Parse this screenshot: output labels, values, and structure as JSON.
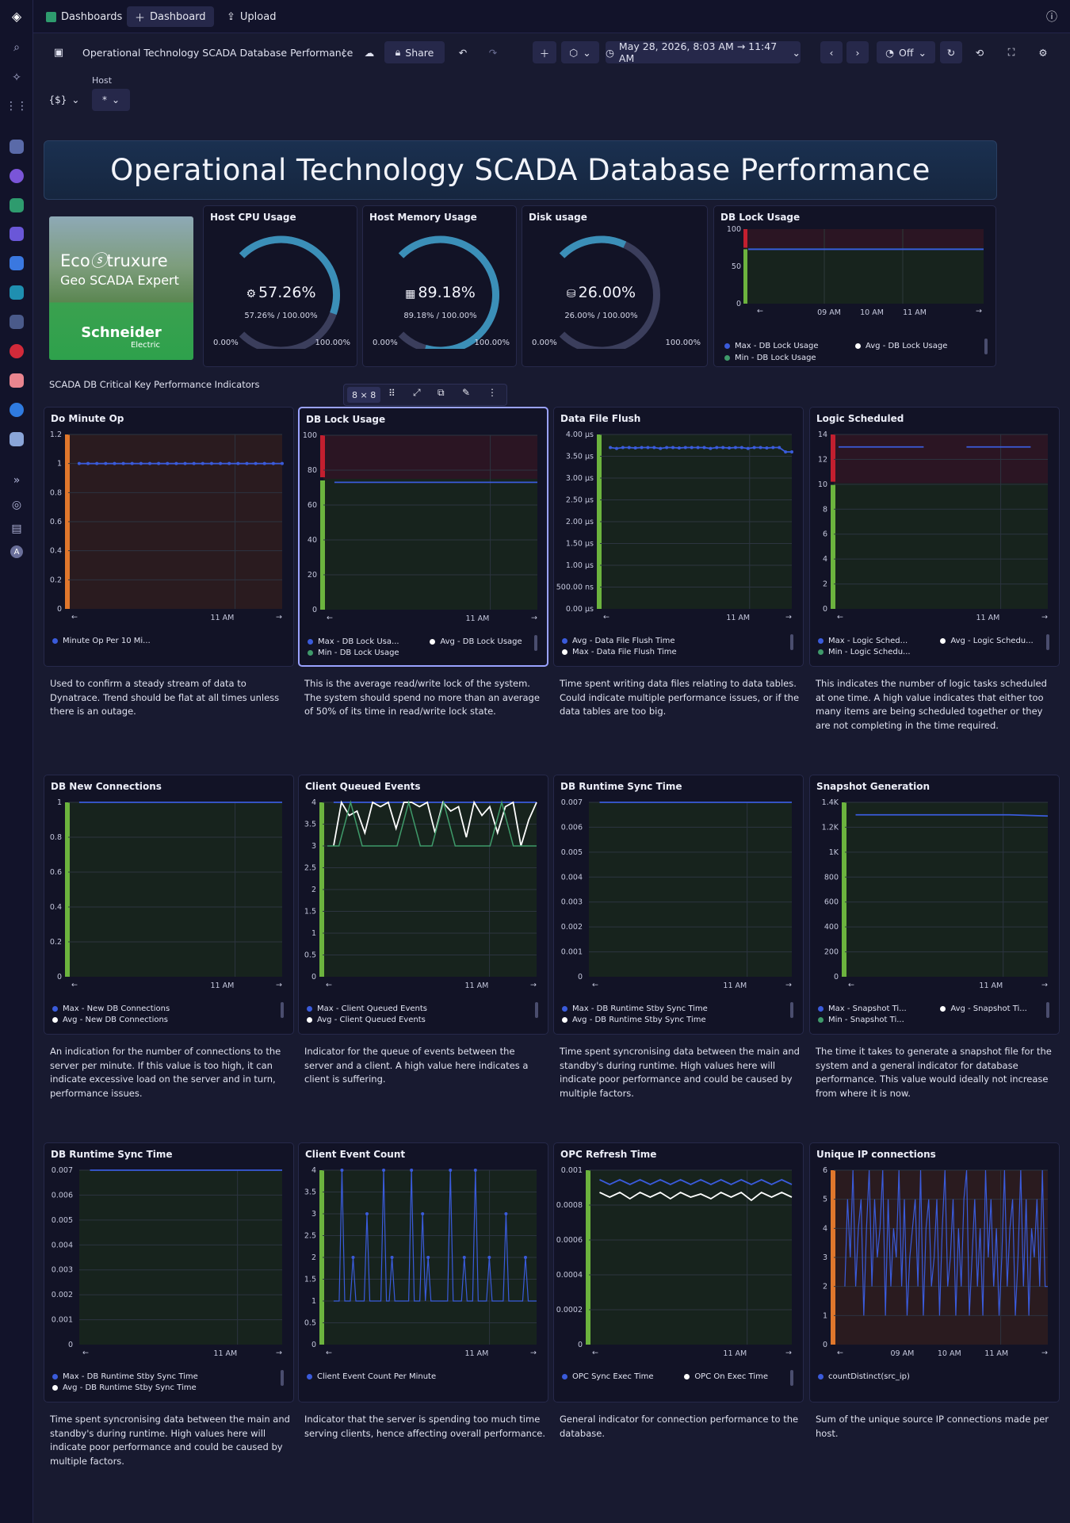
{
  "topbar": {
    "dashboards_tab": "Dashboards",
    "new_dashboard": "Dashboard",
    "upload": "Upload"
  },
  "toolbar": {
    "title": "Operational Technology SCADA Database Performance",
    "share": "Share",
    "timeframe": "May 28, 2026, 8:03 AM → 11:47 AM",
    "refresh": "Off"
  },
  "variables": {
    "host_label": "Host",
    "host_value": "*",
    "vars_button": "{$}"
  },
  "banner": {
    "text": "Operational Technology SCADA Database Performance"
  },
  "logo": {
    "brand1": "Eco",
    "brand2": "truxure",
    "product": "Geo SCADA Expert",
    "company": "Schneider",
    "company_sub": "Electric"
  },
  "gauges": [
    {
      "title": "Host CPU Usage",
      "icon": "cpu-icon",
      "value": "57.26%",
      "sub": "57.26% / 100.00%",
      "min": "0.00%",
      "max": "100.00%",
      "fraction": 0.5726
    },
    {
      "title": "Host Memory Usage",
      "icon": "memory-icon",
      "value": "89.18%",
      "sub": "89.18% / 100.00%",
      "min": "0.00%",
      "max": "100.00%",
      "fraction": 0.8918
    },
    {
      "title": "Disk usage",
      "icon": "disk-icon",
      "value": "26.00%",
      "sub": "26.00% / 100.00%",
      "min": "0.00%",
      "max": "100.00%",
      "fraction": 0.26
    }
  ],
  "section_title": "SCADA DB Critical Key Performance Indicators",
  "tile_toolbar": {
    "size": "8 × 8"
  },
  "colors": {
    "accent": "#3a5bdb",
    "red": "#c21f2f",
    "green": "#6cb33e",
    "orange": "#e0772c",
    "teal": "#3f9a6a"
  },
  "small_chart": {
    "title": "DB Lock Usage",
    "y_ticks": [
      "100",
      "50",
      "0"
    ],
    "x_ticks": [
      "09 AM",
      "10 AM",
      "11 AM"
    ],
    "legend": [
      "Max - DB Lock Usage",
      "Avg - DB Lock Usage",
      "Min - DB Lock Usage"
    ]
  },
  "charts": [
    {
      "title": "Do Minute Op",
      "y_ticks": [
        "1.2",
        "1",
        "0.8",
        "0.6",
        "0.4",
        "0.2",
        "0"
      ],
      "x_ticks": [
        "11 AM"
      ],
      "legend": [
        "Minute Op Per 10 Mi..."
      ],
      "desc": "Used to confirm a steady stream of data to Dynatrace. Trend should be flat at all times unless there is an outage."
    },
    {
      "title": "DB Lock Usage",
      "y_ticks": [
        "100",
        "80",
        "60",
        "40",
        "20",
        "0"
      ],
      "x_ticks": [
        "11 AM"
      ],
      "legend": [
        "Max - DB Lock Usa...",
        "Avg - DB Lock Usage",
        "Min - DB Lock Usage"
      ],
      "desc": "This is the average read/write lock of the system. The system should spend no more than an average of 50% of its time in read/write lock state."
    },
    {
      "title": "Data File Flush",
      "y_ticks": [
        "4.00 μs",
        "3.50 μs",
        "3.00 μs",
        "2.50 μs",
        "2.00 μs",
        "1.50 μs",
        "1.00 μs",
        "500.00 ns",
        "0.00 μs"
      ],
      "x_ticks": [
        "11 AM"
      ],
      "legend": [
        "Avg - Data File Flush Time",
        "Max - Data File Flush Time"
      ],
      "desc": "Time spent writing data files relating to data tables. Could indicate multiple performance issues, or if the data tables are too big."
    },
    {
      "title": "Logic Scheduled",
      "y_ticks": [
        "14",
        "12",
        "10",
        "8",
        "6",
        "4",
        "2",
        "0"
      ],
      "x_ticks": [
        "11 AM"
      ],
      "legend": [
        "Max - Logic Sched...",
        "Avg - Logic Schedu...",
        "Min - Logic Schedu..."
      ],
      "desc": "This indicates the number of logic tasks scheduled at one time. A high value indicates that either too many items are being scheduled together or they are not completing in the time required."
    },
    {
      "title": "DB New Connections",
      "y_ticks": [
        "1",
        "0.8",
        "0.6",
        "0.4",
        "0.2",
        "0"
      ],
      "x_ticks": [
        "11 AM"
      ],
      "legend": [
        "Max - New DB Connections",
        "Avg - New DB Connections"
      ],
      "desc": "An indication for the number of connections to the server per minute. If this value is too high, it can indicate excessive load on the server and in turn, performance issues."
    },
    {
      "title": "Client Queued Events",
      "y_ticks": [
        "4",
        "3.5",
        "3",
        "2.5",
        "2",
        "1.5",
        "1",
        "0.5",
        "0"
      ],
      "x_ticks": [
        "11 AM"
      ],
      "legend": [
        "Max - Client Queued Events",
        "Avg - Client Queued Events"
      ],
      "desc": "Indicator for the queue of events between the server and a client. A high value here indicates a client is suffering."
    },
    {
      "title": "DB Runtime Sync Time",
      "y_ticks": [
        "0.007",
        "0.006",
        "0.005",
        "0.004",
        "0.003",
        "0.002",
        "0.001",
        "0"
      ],
      "x_ticks": [
        "11 AM"
      ],
      "legend": [
        "Max - DB Runtime Stby Sync Time",
        "Avg - DB Runtime Stby Sync Time"
      ],
      "desc": "Time spent syncronising data between the main and standby's during runtime. High values here will indicate poor performance and could be caused by multiple factors."
    },
    {
      "title": "Snapshot Generation",
      "y_ticks": [
        "1.4K",
        "1.2K",
        "1K",
        "800",
        "600",
        "400",
        "200",
        "0"
      ],
      "x_ticks": [
        "11 AM"
      ],
      "legend": [
        "Max - Snapshot Ti...",
        "Avg - Snapshot Ti...",
        "Min - Snapshot Ti..."
      ],
      "desc": "The time it takes to generate a snapshot file for the system and a general indicator for database performance. This value would ideally not increase from where it is now."
    },
    {
      "title": "DB Runtime Sync Time",
      "y_ticks": [
        "0.007",
        "0.006",
        "0.005",
        "0.004",
        "0.003",
        "0.002",
        "0.001",
        "0"
      ],
      "x_ticks": [
        "11 AM"
      ],
      "legend": [
        "Max - DB Runtime Stby Sync Time",
        "Avg - DB Runtime Stby Sync Time"
      ],
      "desc": "Time spent syncronising data between the main and standby's during runtime. High values here will indicate poor performance and could be caused by multiple factors."
    },
    {
      "title": "Client Event Count",
      "y_ticks": [
        "4",
        "3.5",
        "3",
        "2.5",
        "2",
        "1.5",
        "1",
        "0.5",
        "0"
      ],
      "x_ticks": [
        "11 AM"
      ],
      "legend": [
        "Client Event Count Per Minute"
      ],
      "desc": "Indicator that the server is spending too much time serving clients, hence affecting overall performance."
    },
    {
      "title": "OPC Refresh Time",
      "y_ticks": [
        "0.001",
        "0.0008",
        "0.0006",
        "0.0004",
        "0.0002",
        "0"
      ],
      "x_ticks": [
        "11 AM"
      ],
      "legend": [
        "OPC Sync Exec Time",
        "OPC On Exec Time"
      ],
      "desc": "General indicator for connection performance to the database."
    },
    {
      "title": "Unique IP connections",
      "y_ticks": [
        "6",
        "5",
        "4",
        "3",
        "2",
        "1",
        "0"
      ],
      "x_ticks": [
        "09 AM",
        "10 AM",
        "11 AM"
      ],
      "legend": [
        "countDistinct(src_ip)"
      ],
      "desc": "Sum of the unique source IP connections made per host."
    }
  ],
  "chart_data": [
    {
      "type": "line",
      "title": "Do Minute Op",
      "ylim": [
        0,
        1.2
      ],
      "series": [
        {
          "name": "Minute Op Per 10 Mi...",
          "values": [
            1,
            1,
            1,
            1,
            1,
            1,
            1,
            1,
            1,
            1,
            1,
            1,
            1,
            1,
            1,
            1,
            1,
            1,
            1,
            1,
            1,
            1,
            1,
            1
          ]
        }
      ]
    },
    {
      "type": "line",
      "title": "DB Lock Usage",
      "ylim": [
        0,
        100
      ],
      "series": [
        {
          "name": "Max - DB Lock Usa...",
          "values": [
            73,
            73,
            73,
            73,
            73,
            73,
            73,
            73,
            73,
            73
          ]
        }
      ]
    },
    {
      "type": "line",
      "title": "Data File Flush",
      "ylim": [
        0,
        4
      ],
      "series": [
        {
          "name": "Avg - Data File Flush Time",
          "values": [
            3.7,
            3.68,
            3.7,
            3.7,
            3.69,
            3.7,
            3.7,
            3.7,
            3.68,
            3.7,
            3.7,
            3.69,
            3.7,
            3.7,
            3.7,
            3.7,
            3.68,
            3.7,
            3.7,
            3.69,
            3.7,
            3.7,
            3.68,
            3.7,
            3.7,
            3.69,
            3.7,
            3.7,
            3.6,
            3.6
          ]
        }
      ]
    },
    {
      "type": "line",
      "title": "Logic Scheduled",
      "ylim": [
        0,
        14
      ],
      "series": [
        {
          "name": "Max - Logic Sched...",
          "values": [
            13
          ]
        }
      ]
    },
    {
      "type": "line",
      "title": "DB New Connections",
      "ylim": [
        0,
        1
      ],
      "series": [
        {
          "name": "Max - New DB Connections",
          "values": [
            1,
            1,
            1,
            1,
            1,
            1,
            1,
            1,
            1,
            1
          ]
        }
      ]
    },
    {
      "type": "line",
      "title": "Client Queued Events",
      "ylim": [
        0,
        4
      ],
      "series": [
        {
          "name": "Max - Client Queued Events",
          "values": [
            4,
            4,
            4,
            4,
            4,
            4,
            4,
            4,
            4,
            4
          ]
        },
        {
          "name": "Avg - Client Queued Events",
          "values": [
            3,
            4,
            3.7,
            3.8,
            3.3,
            4,
            3.9,
            4,
            3.4,
            4,
            4,
            3.9,
            4,
            3.3,
            4,
            3.8,
            3.9,
            3.2,
            4,
            3.7,
            3.9,
            3.3,
            3.9,
            4,
            3,
            3.6,
            4
          ]
        }
      ]
    },
    {
      "type": "line",
      "title": "DB Runtime Sync Time",
      "ylim": [
        0,
        0.007
      ],
      "series": [
        {
          "name": "Max - DB Runtime Stby Sync Time",
          "values": [
            0.007,
            0.007,
            0.007,
            0.007,
            0.007
          ]
        }
      ]
    },
    {
      "type": "line",
      "title": "Snapshot Generation",
      "ylim": [
        0,
        1400
      ],
      "series": [
        {
          "name": "Max - Snapshot Ti...",
          "values": [
            1300,
            1300,
            1300,
            1300,
            1300,
            1290
          ]
        }
      ]
    },
    {
      "type": "line",
      "title": "DB Runtime Sync Time",
      "ylim": [
        0,
        0.007
      ],
      "series": [
        {
          "name": "Max - DB Runtime Stby Sync Time",
          "values": [
            0.007,
            0.007,
            0.007,
            0.007,
            0.007
          ]
        }
      ]
    },
    {
      "type": "line",
      "title": "Client Event Count",
      "ylim": [
        0,
        4
      ],
      "series": [
        {
          "name": "Client Event Count Per Minute",
          "values": [
            1,
            1,
            1,
            4,
            1,
            1,
            1,
            2,
            1,
            1,
            1,
            1,
            3,
            1,
            1,
            1,
            1,
            1,
            4,
            1,
            1,
            2,
            1,
            1,
            1,
            1,
            1,
            1,
            4,
            1,
            1,
            1,
            3,
            1,
            2,
            1,
            1,
            1,
            1,
            1,
            1,
            1,
            4,
            1,
            1,
            1,
            1,
            2,
            1,
            1,
            1,
            4,
            1,
            1,
            1,
            1,
            2,
            1,
            1,
            1,
            1,
            1,
            3,
            1,
            1,
            1,
            1,
            1,
            1,
            2,
            1,
            1,
            1,
            1
          ]
        }
      ]
    },
    {
      "type": "line",
      "title": "OPC Refresh Time",
      "ylim": [
        0,
        0.0011
      ],
      "series": [
        {
          "name": "OPC Sync Exec Time",
          "values": [
            0.00104,
            0.00101,
            0.00104,
            0.00101,
            0.00104,
            0.00101,
            0.00104,
            0.00101,
            0.00104,
            0.00101,
            0.00104,
            0.00101,
            0.00104,
            0.00101,
            0.00104,
            0.00101,
            0.00104,
            0.00101,
            0.00104,
            0.00101
          ]
        },
        {
          "name": "OPC On Exec Time",
          "values": [
            0.00096,
            0.00093,
            0.00096,
            0.00092,
            0.00096,
            0.00093,
            0.00096,
            0.00092,
            0.00096,
            0.00093,
            0.00095,
            0.00092,
            0.00096,
            0.00093,
            0.00096,
            0.00091,
            0.00096,
            0.00093,
            0.00096,
            0.00093
          ]
        }
      ]
    },
    {
      "type": "line",
      "title": "Unique IP connections",
      "ylim": [
        0,
        6
      ],
      "series": [
        {
          "name": "countDistinct(src_ip)",
          "values": [
            2,
            5,
            3,
            6,
            2,
            4,
            5,
            1,
            4,
            6,
            2,
            5,
            3,
            4,
            6,
            1,
            5,
            2,
            4,
            3,
            6,
            2,
            5,
            1,
            3,
            4,
            5,
            2,
            6,
            1,
            4,
            5,
            2,
            3,
            5,
            1,
            4,
            6,
            2,
            3,
            5,
            1,
            4,
            2,
            5,
            6,
            1,
            3,
            5,
            2,
            4,
            1,
            6,
            3,
            5,
            2,
            4,
            1,
            3,
            6,
            2,
            4,
            5,
            1,
            3,
            6,
            2,
            5,
            1,
            4,
            3,
            5,
            2,
            6,
            2,
            2
          ]
        }
      ]
    }
  ]
}
